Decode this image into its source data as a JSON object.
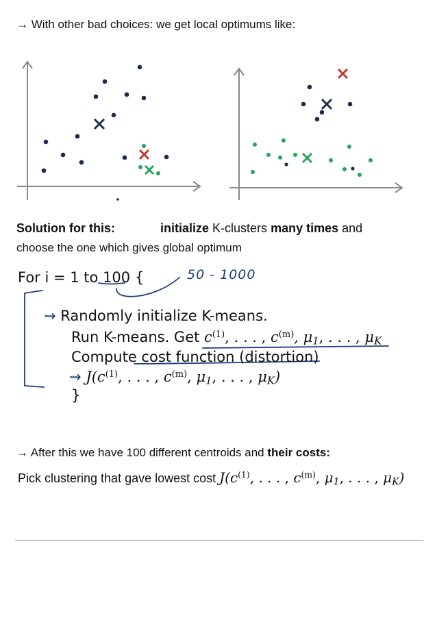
{
  "intro": {
    "arrow": "→",
    "text": "With other bad choices: we get local optimums like:"
  },
  "solution": {
    "label": "Solution for this:",
    "init_word": "initialize",
    "mid": " K-clusters ",
    "many_times": "many times",
    "and": " and",
    "line2": "choose the one which gives global optimum"
  },
  "algorithm": {
    "for_prefix": "For i = 1 to ",
    "for_count": "100",
    "for_brace": " {",
    "handwritten_note": "50 - 1000",
    "step1_arrow": "⇝",
    "step1": "Randomly initialize K-means.",
    "step2_prefix": "Run K-means. Get ",
    "step3": "Compute cost function (distortion)",
    "step4_arrow": "⇝",
    "close_brace": "}"
  },
  "math": {
    "c": "c",
    "sup1": "(1)",
    "supm": "(m)",
    "dots": ", . . . , ",
    "comma": ", ",
    "mu": "μ",
    "sub1": "1",
    "subK": "K",
    "J": "J(",
    "close": ")"
  },
  "after": {
    "arrow": "→",
    "text": "After this we have 100 different centroids and ",
    "bold": "their costs:"
  },
  "pick": {
    "text": "Pick clustering that gave lowest cost "
  },
  "colors": {
    "dark": "#1c2b4a",
    "red": "#c0392b",
    "green": "#27a35a",
    "ink": "#1a3b7a",
    "axis": "#888888"
  }
}
